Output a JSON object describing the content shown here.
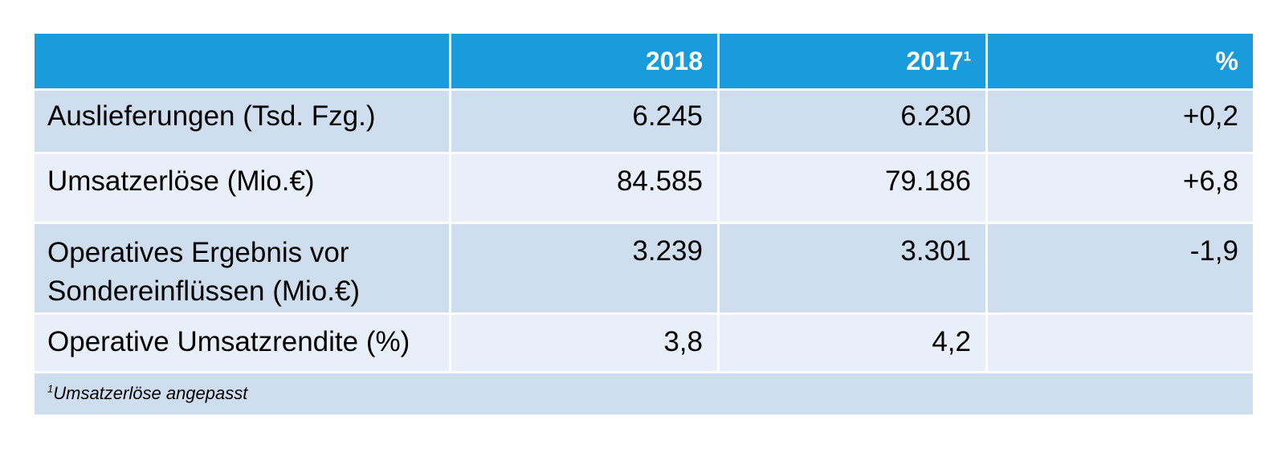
{
  "table": {
    "headers": [
      "",
      "2018",
      "2017",
      "%"
    ],
    "header_superscript": "1",
    "rows": [
      {
        "label": "Auslieferungen (Tsd. Fzg.)",
        "v2018": "6.245",
        "v2017": "6.230",
        "pct": "+0,2"
      },
      {
        "label": "Umsatzerlöse (Mio.€)",
        "v2018": "84.585",
        "v2017": "79.186",
        "pct": "+6,8"
      },
      {
        "label_line1": "Operatives Ergebnis vor",
        "label_line2": "Sondereinflüssen (Mio.€)",
        "v2018": "3.239",
        "v2017": "3.301",
        "pct": "-1,9"
      },
      {
        "label": "Operative Umsatzrendite (%)",
        "v2018": "3,8",
        "v2017": "4,2",
        "pct": ""
      }
    ],
    "footnote": {
      "marker": "1",
      "text": "Umsatzerlöse angepasst"
    }
  },
  "colors": {
    "header_bg": "#1a9bdb",
    "row_dark": "#cfdeee",
    "row_light": "#e8eff8",
    "header_text": "#ffffff"
  }
}
